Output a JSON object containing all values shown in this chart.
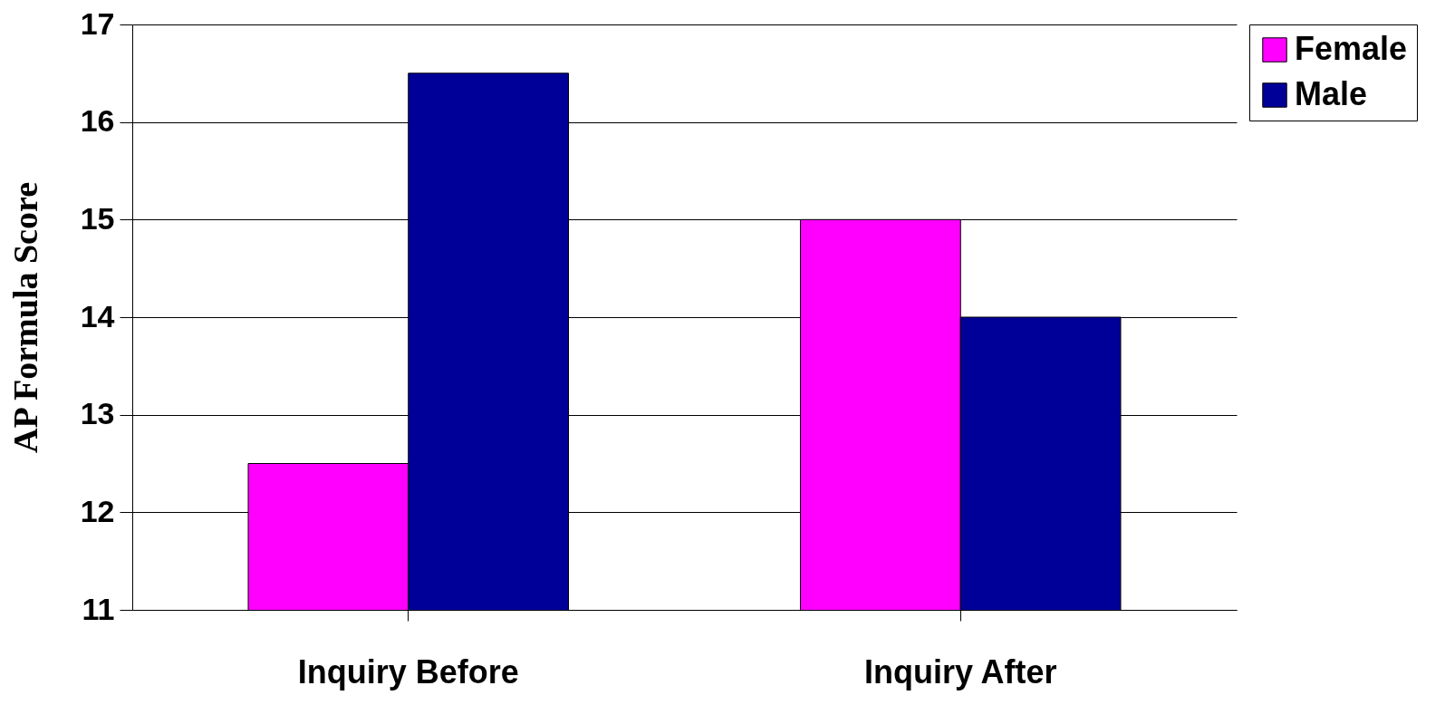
{
  "chart_data": {
    "type": "bar",
    "ylabel": "AP  Formula Score",
    "categories": [
      "Inquiry Before",
      "Inquiry After"
    ],
    "series": [
      {
        "name": "Female",
        "color": "#ff00ff",
        "values": [
          12.5,
          15
        ]
      },
      {
        "name": "Male",
        "color": "#000099",
        "values": [
          16.5,
          14
        ]
      }
    ],
    "ylim": [
      11,
      17
    ],
    "yticks": [
      11,
      12,
      13,
      14,
      15,
      16,
      17
    ],
    "grid": "y",
    "legend": "right"
  }
}
